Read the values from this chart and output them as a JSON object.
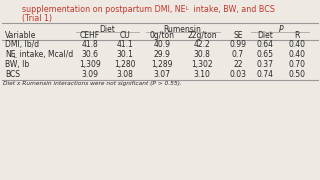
{
  "title_line1": "supplementation on postpartum DMI, NE",
  "title_sub": "L",
  "title_line1_end": " intake, BW, and BCS",
  "title_line2": "(Trial 1)",
  "col_headers": [
    "Variable",
    "CEHF",
    "CU",
    "0g/ton",
    "22g/ton",
    "SE",
    "Diet",
    "R"
  ],
  "rows": [
    [
      "DMI, lb/d",
      "41.8",
      "41.1",
      "40.9",
      "42.2",
      "0.99",
      "0.64",
      "0.40"
    ],
    [
      "NE_L intake, Mcal/d",
      "30.6",
      "30.1",
      "29.9",
      "30.8",
      "0.7",
      "0.65",
      "0.40"
    ],
    [
      "BW, lb",
      "1,309",
      "1,280",
      "1,289",
      "1,302",
      "22",
      "0.37",
      "0.70"
    ],
    [
      "BCS",
      "3.09",
      "3.08",
      "3.07",
      "3.10",
      "0.03",
      "0.74",
      "0.50"
    ]
  ],
  "footnote": "Diet x Rumensin interactions were not significant (P > 0.55).",
  "bg_color": "#eee9e2",
  "title_color": "#c0392b",
  "text_color": "#2a2a2a",
  "line_color": "#999999"
}
